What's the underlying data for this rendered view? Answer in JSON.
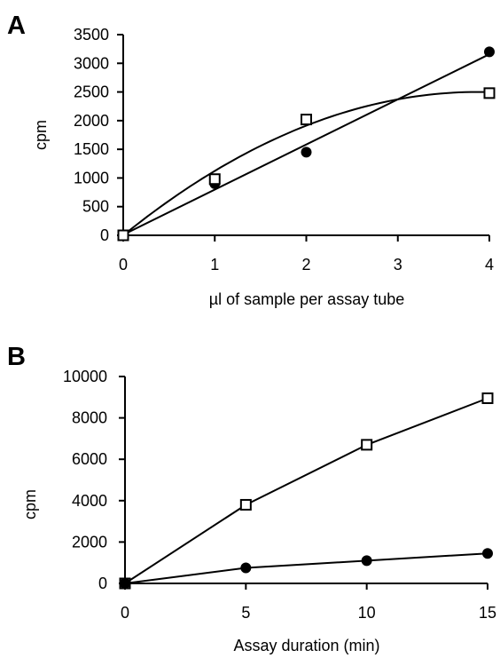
{
  "chart_data": [
    {
      "panel": "A",
      "type": "scatter",
      "xlabel": "µl of sample per assay tube",
      "ylabel": "cpm",
      "xlim": [
        0,
        4
      ],
      "ylim": [
        0,
        3500
      ],
      "xticks": [
        0,
        1,
        2,
        3,
        4
      ],
      "yticks": [
        0,
        500,
        1000,
        1500,
        2000,
        2500,
        3000,
        3500
      ],
      "grid": false,
      "legend": "none",
      "series": [
        {
          "marker": "filled-circle",
          "x": [
            0,
            1,
            2,
            4
          ],
          "y": [
            0,
            900,
            1450,
            3200
          ],
          "fit": "linear"
        },
        {
          "marker": "open-square",
          "x": [
            0,
            1,
            2,
            4
          ],
          "y": [
            0,
            980,
            2020,
            2480
          ],
          "fit": "curve"
        }
      ]
    },
    {
      "panel": "B",
      "type": "line",
      "xlabel": "Assay duration (min)",
      "ylabel": "cpm",
      "xlim": [
        0,
        15
      ],
      "ylim": [
        0,
        10000
      ],
      "xticks": [
        0,
        5,
        10,
        15
      ],
      "yticks": [
        0,
        2000,
        4000,
        6000,
        8000,
        10000
      ],
      "grid": false,
      "legend": "none",
      "series": [
        {
          "marker": "open-square",
          "x": [
            0,
            5,
            10,
            15
          ],
          "y": [
            0,
            3800,
            6700,
            8950
          ]
        },
        {
          "marker": "filled-circle",
          "x": [
            0,
            5,
            10,
            15
          ],
          "y": [
            0,
            750,
            1100,
            1450
          ]
        }
      ]
    }
  ]
}
